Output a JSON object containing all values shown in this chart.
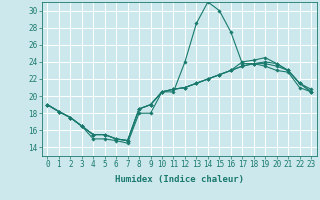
{
  "title": "",
  "xlabel": "Humidex (Indice chaleur)",
  "ylabel": "",
  "background_color": "#cce8ec",
  "grid_color": "#ffffff",
  "line_color": "#1a7a6e",
  "xlim": [
    -0.5,
    23.5
  ],
  "ylim": [
    13.0,
    31.0
  ],
  "yticks": [
    14,
    16,
    18,
    20,
    22,
    24,
    26,
    28,
    30
  ],
  "xticks": [
    0,
    1,
    2,
    3,
    4,
    5,
    6,
    7,
    8,
    9,
    10,
    11,
    12,
    13,
    14,
    15,
    16,
    17,
    18,
    19,
    20,
    21,
    22,
    23
  ],
  "series": [
    [
      19.0,
      18.2,
      17.5,
      16.5,
      15.0,
      15.0,
      14.8,
      14.5,
      18.0,
      18.0,
      20.5,
      20.5,
      24.0,
      28.5,
      31.0,
      30.0,
      27.5,
      23.8,
      23.8,
      23.8,
      23.5,
      23.0,
      21.5,
      20.8
    ],
    [
      19.0,
      18.2,
      17.5,
      16.5,
      15.5,
      15.5,
      15.0,
      14.8,
      18.5,
      19.0,
      20.5,
      20.8,
      21.0,
      21.5,
      22.0,
      22.5,
      23.0,
      23.5,
      23.8,
      24.0,
      23.8,
      23.0,
      21.5,
      20.5
    ],
    [
      19.0,
      18.2,
      17.5,
      16.5,
      15.5,
      15.5,
      15.0,
      14.8,
      18.5,
      19.0,
      20.5,
      20.8,
      21.0,
      21.5,
      22.0,
      22.5,
      23.0,
      24.0,
      24.2,
      24.5,
      23.8,
      23.0,
      21.5,
      20.5
    ],
    [
      19.0,
      18.2,
      17.5,
      16.5,
      15.5,
      15.5,
      15.0,
      14.8,
      18.5,
      19.0,
      20.5,
      20.8,
      21.0,
      21.5,
      22.0,
      22.5,
      23.0,
      23.5,
      23.8,
      23.5,
      23.0,
      22.8,
      21.0,
      20.5
    ]
  ],
  "tick_fontsize": 5.5,
  "xlabel_fontsize": 6.5
}
